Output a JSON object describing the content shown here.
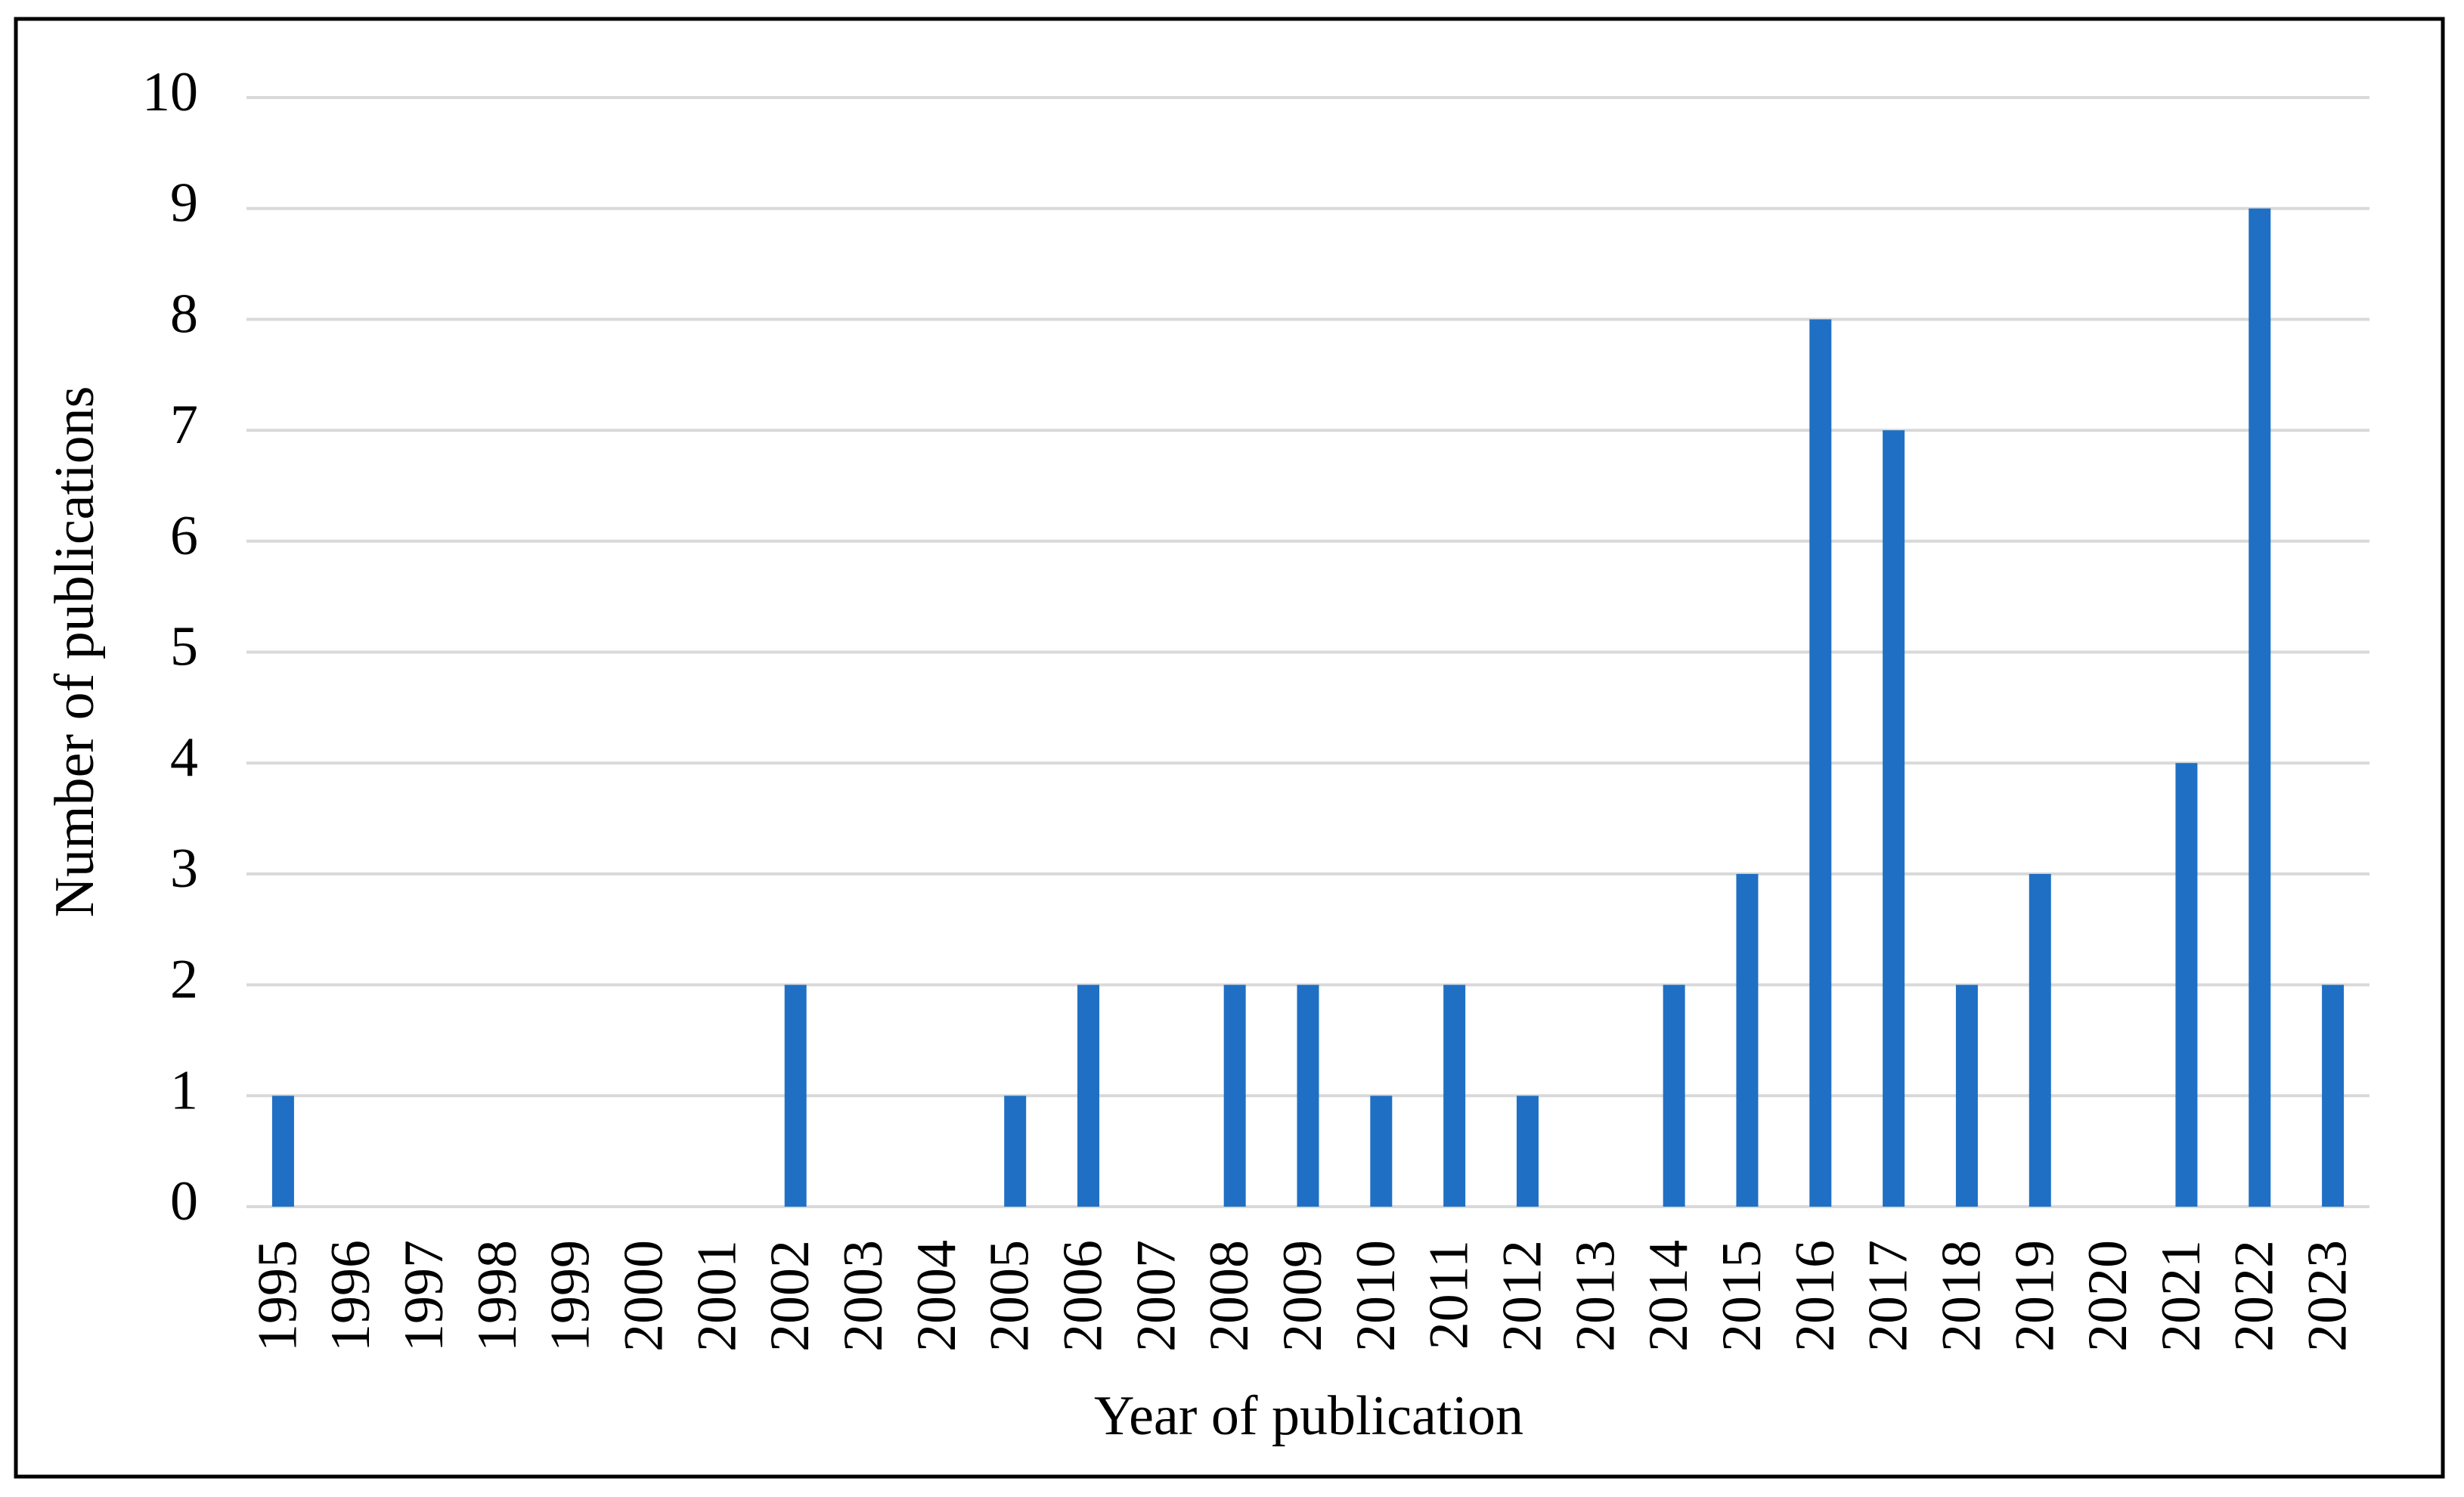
{
  "chart_data": {
    "type": "bar",
    "x_label": "Year of publication",
    "y_label": "Number of publications",
    "categories": [
      "1995",
      "1996",
      "1997",
      "1998",
      "1999",
      "2000",
      "2001",
      "2002",
      "2003",
      "2004",
      "2005",
      "2006",
      "2007",
      "2008",
      "2009",
      "2010",
      "2011",
      "2012",
      "2013",
      "2014",
      "2015",
      "2016",
      "2017",
      "2018",
      "2019",
      "2020",
      "2021",
      "2022",
      "2023"
    ],
    "values": [
      1,
      0,
      0,
      0,
      0,
      0,
      0,
      2,
      0,
      0,
      1,
      2,
      0,
      2,
      2,
      1,
      2,
      1,
      0,
      2,
      3,
      8,
      7,
      2,
      3,
      0,
      4,
      9,
      2
    ],
    "color": "#1f70c4",
    "ylim": [
      0,
      10
    ],
    "yticks": [
      0,
      1,
      2,
      3,
      4,
      5,
      6,
      7,
      8,
      9,
      10
    ],
    "grid": true
  }
}
